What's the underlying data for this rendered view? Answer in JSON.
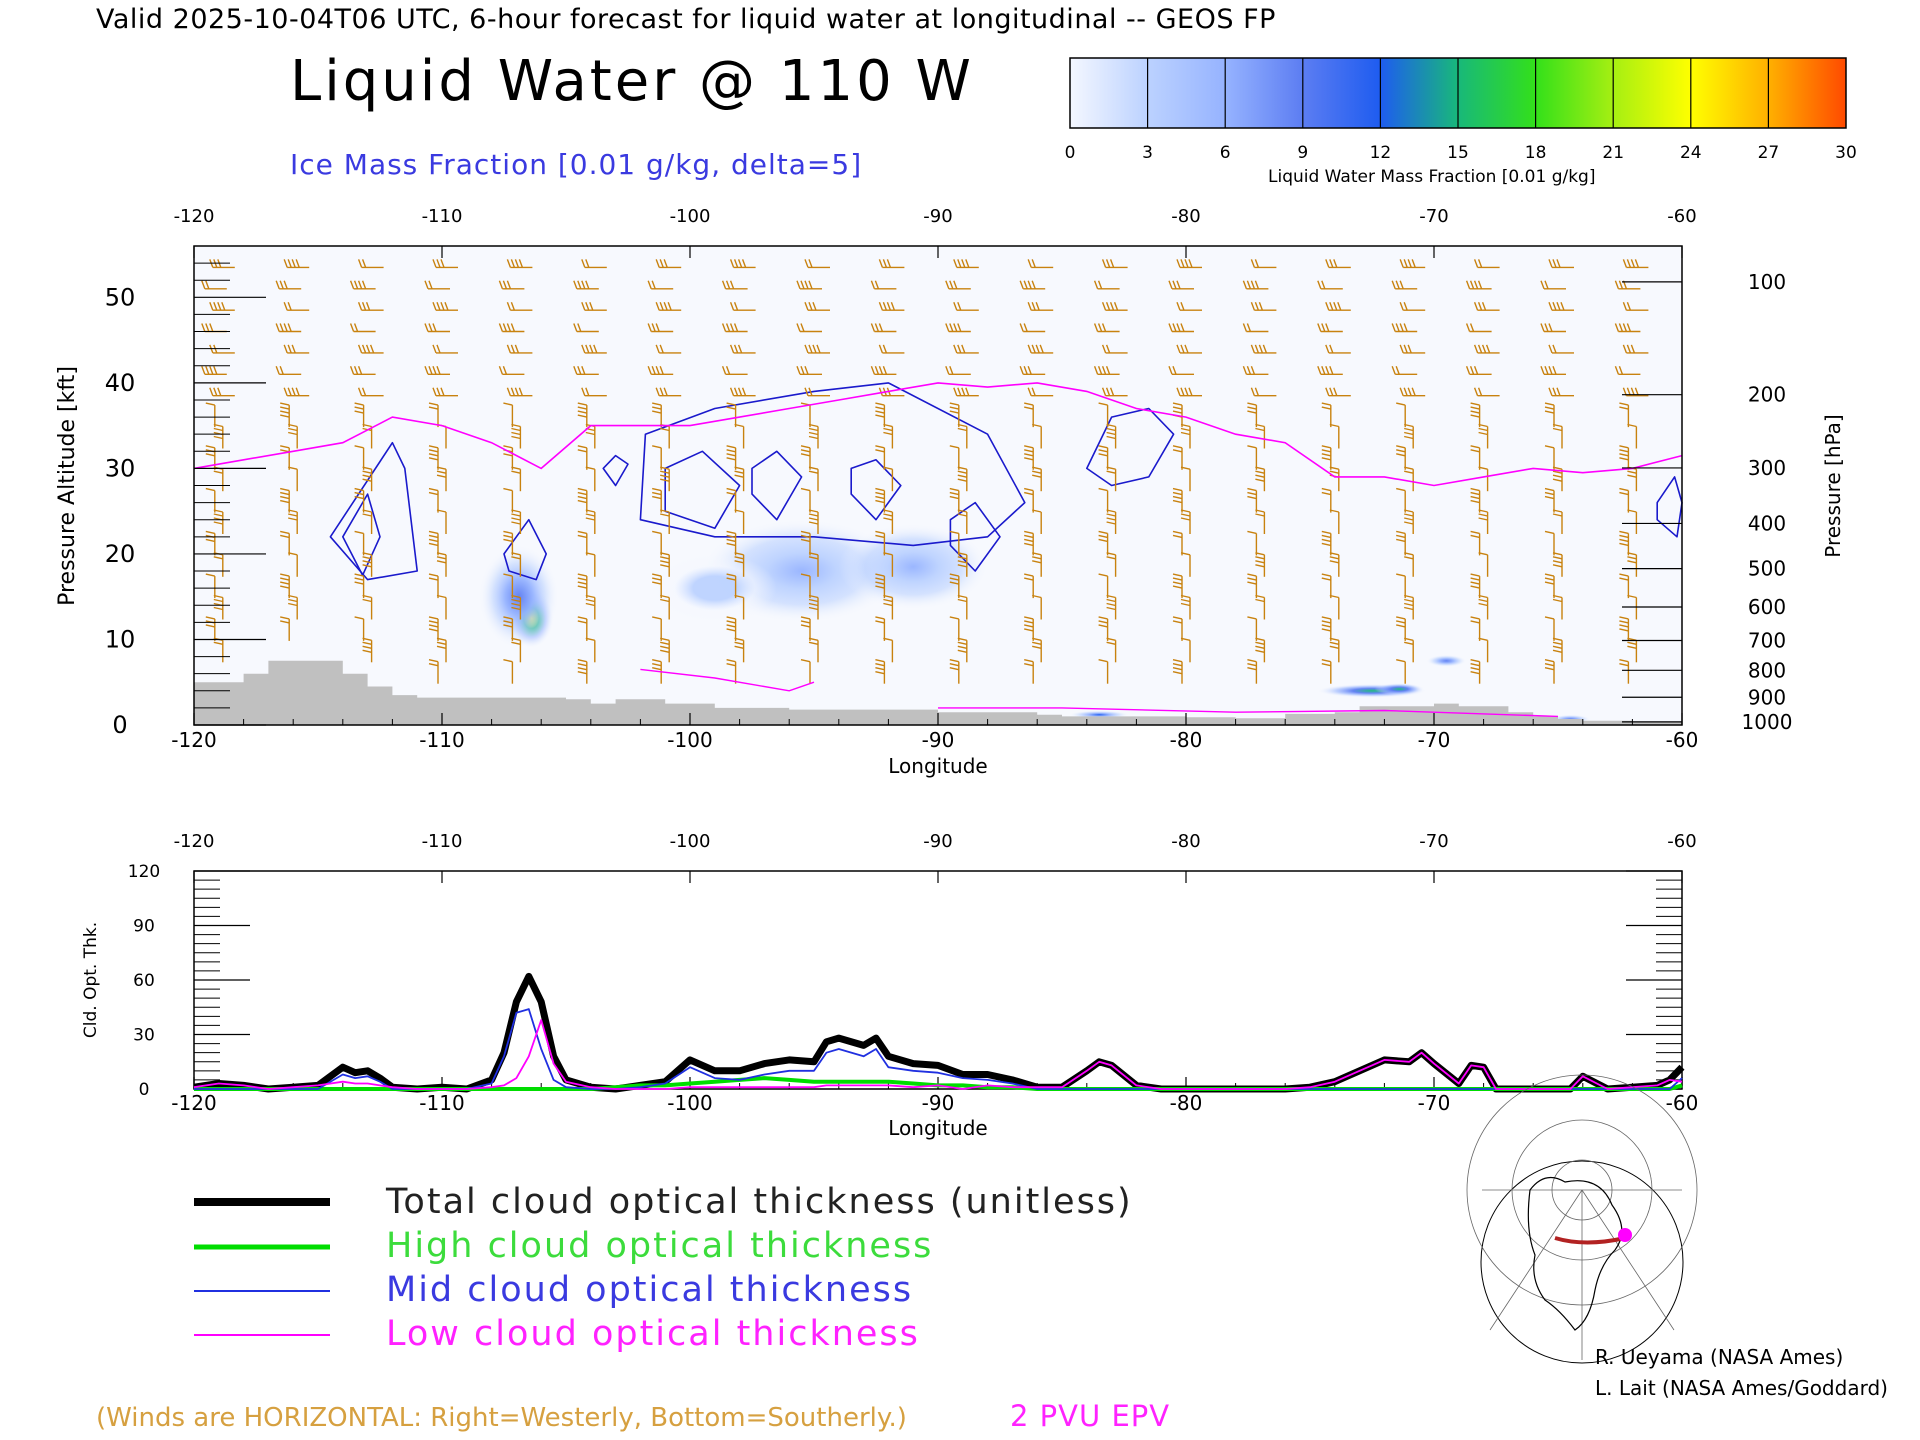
{
  "header": {
    "valid_line": "Valid 2025-10-04T06 UTC, 6-hour forecast for liquid water at longitudinal -- GEOS FP",
    "title": "Liquid Water @ 110 W",
    "subtitle": "Ice Mass Fraction [0.01 g/kg, delta=5]"
  },
  "colorbar": {
    "ticks": [
      "0",
      "3",
      "6",
      "9",
      "12",
      "15",
      "18",
      "21",
      "24",
      "27",
      "30"
    ],
    "label": "Liquid Water Mass Fraction [0.01 g/kg]",
    "colors": [
      "#f4f7ff",
      "#bcd2ff",
      "#96b3ff",
      "#5c7df2",
      "#1e5cf0",
      "#18b87a",
      "#33e01a",
      "#a6ef12",
      "#ffff00",
      "#ffb000",
      "#ff4a00"
    ]
  },
  "colors": {
    "ice_contour": "#1a1acc",
    "epv": "#ff00ff",
    "wind_barb": "#c8820f",
    "terrain": "#c0c0c0",
    "total": "#000000",
    "high": "#00dd00",
    "mid": "#2030e0",
    "low": "#ff00ff"
  },
  "chart_data": [
    {
      "type": "heatmap",
      "xlabel": "Longitude",
      "ylabel_left": "Pressure Altitude [kft]",
      "ylabel_right": "Pressure [hPa]",
      "x_ticks": [
        "-120",
        "-110",
        "-100",
        "-90",
        "-80",
        "-70",
        "-60"
      ],
      "y_ticks": [
        "0",
        "10",
        "20",
        "30",
        "40",
        "50"
      ],
      "pressure_ticks": [
        "100",
        "200",
        "300",
        "400",
        "500",
        "600",
        "700",
        "800",
        "900",
        "1000"
      ],
      "xlim": [
        -120,
        -60
      ],
      "ylim": [
        0,
        56
      ],
      "liquid_water_blobs": [
        {
          "lon": -106.4,
          "alt": 12.5,
          "peak": 24,
          "rx": 0.9,
          "ry": 3.5
        },
        {
          "lon": -106.9,
          "alt": 15,
          "peak": 8,
          "rx": 1.6,
          "ry": 6
        },
        {
          "lon": -95.5,
          "alt": 18,
          "peak": 5,
          "rx": 4,
          "ry": 6
        },
        {
          "lon": -91,
          "alt": 18.5,
          "peak": 5,
          "rx": 3,
          "ry": 5
        },
        {
          "lon": -99,
          "alt": 16,
          "peak": 3,
          "rx": 2.5,
          "ry": 4
        },
        {
          "lon": -72.5,
          "alt": 4,
          "peak": 15,
          "rx": 2.2,
          "ry": 0.8
        },
        {
          "lon": -71.4,
          "alt": 4.2,
          "peak": 16,
          "rx": 1,
          "ry": 0.7
        },
        {
          "lon": -69.5,
          "alt": 7.5,
          "peak": 10,
          "rx": 0.8,
          "ry": 0.7
        },
        {
          "lon": -83.5,
          "alt": 1.2,
          "peak": 11,
          "rx": 1.2,
          "ry": 0.5
        },
        {
          "lon": -64.5,
          "alt": 0.7,
          "peak": 8,
          "rx": 0.8,
          "ry": 0.5
        }
      ],
      "epv_2pvu": {
        "lon": [
          -120,
          -118,
          -116,
          -114,
          -112,
          -110,
          -108,
          -106,
          -104,
          -102,
          -100,
          -98,
          -96,
          -94,
          -92,
          -90,
          -88,
          -86,
          -84,
          -82,
          -80,
          -78,
          -76,
          -74,
          -72,
          -70,
          -68,
          -66,
          -64,
          -62,
          -60
        ],
        "alt": [
          30,
          31,
          32,
          33,
          36,
          35,
          33,
          30,
          35,
          35,
          35,
          36,
          37,
          38,
          39,
          40,
          39.5,
          40,
          39,
          37,
          36,
          34,
          33,
          29,
          29,
          28,
          29,
          30,
          29.5,
          30,
          31.5
        ]
      },
      "terrain": {
        "lon": [
          -120,
          -119,
          -118,
          -117,
          -116,
          -115,
          -114,
          -113,
          -112,
          -111,
          -110,
          -109,
          -108,
          -107,
          -106,
          -105,
          -104,
          -103,
          -102,
          -101,
          -100,
          -99,
          -98,
          -97,
          -96,
          -95,
          -94,
          -93,
          -92,
          -91,
          -90,
          -89,
          -88,
          -87,
          -86,
          -85,
          -84,
          -83,
          -82,
          -81,
          -80,
          -79,
          -78,
          -77,
          -76,
          -75,
          -74,
          -73,
          -72,
          -71,
          -70,
          -69,
          -68,
          -67,
          -66,
          -65,
          -64,
          -63,
          -62,
          -61,
          -60
        ],
        "alt": [
          5,
          5,
          6,
          7.5,
          7.5,
          7.5,
          6,
          4.5,
          3.5,
          3.2,
          3.2,
          3.2,
          3.2,
          3.2,
          3.2,
          3,
          2.5,
          3,
          3,
          2.5,
          2.5,
          2,
          2,
          2,
          1.8,
          1.8,
          1.8,
          1.8,
          1.8,
          1.8,
          1.5,
          1.5,
          1.5,
          1.5,
          1.2,
          1,
          1,
          1,
          1,
          1,
          0.9,
          0.9,
          0.8,
          0.8,
          1.3,
          1.3,
          1.5,
          2.2,
          2.2,
          2.2,
          2.5,
          2.2,
          2.2,
          1.5,
          1,
          0.7,
          0.5,
          0.5,
          0.3,
          0.3,
          0.3
        ]
      }
    },
    {
      "type": "line",
      "xlabel": "Longitude",
      "ylabel": "Cld. Opt. Thk.",
      "x_ticks": [
        "-120",
        "-110",
        "-100",
        "-90",
        "-80",
        "-70",
        "-60"
      ],
      "y_ticks": [
        "0",
        "30",
        "60",
        "90",
        "120"
      ],
      "xlim": [
        -120,
        -60
      ],
      "ylim": [
        0,
        120
      ],
      "x": [
        -120,
        -119,
        -118,
        -117,
        -116,
        -115,
        -114,
        -113.5,
        -113,
        -112.5,
        -112,
        -111,
        -110,
        -109,
        -108,
        -107.5,
        -107,
        -106.5,
        -106,
        -105.5,
        -105,
        -104,
        -103,
        -102,
        -101,
        -100,
        -99,
        -98,
        -97,
        -96,
        -95,
        -94.5,
        -94,
        -93,
        -92.5,
        -92,
        -91,
        -90,
        -89,
        -88,
        -87,
        -86,
        -85,
        -84,
        -83.5,
        -83,
        -82,
        -81,
        -80,
        -79,
        -78,
        -77,
        -76,
        -75,
        -74,
        -73,
        -72,
        -71,
        -70.5,
        -70,
        -69,
        -68.5,
        -68,
        -67.5,
        -67,
        -66,
        -65,
        -64.5,
        -64,
        -63,
        -62,
        -61,
        -60.5,
        -60
      ],
      "series": [
        {
          "name": "Total cloud optical thickness (unitless)",
          "values": [
            1,
            3,
            2,
            0,
            1,
            2,
            12,
            9,
            10,
            6,
            1,
            0,
            1,
            0,
            5,
            20,
            48,
            62,
            48,
            18,
            5,
            1,
            0,
            2,
            4,
            16,
            10,
            10,
            14,
            16,
            15,
            26,
            28,
            24,
            28,
            18,
            14,
            13,
            8,
            8,
            5,
            1,
            1,
            10,
            15,
            13,
            2,
            0,
            0,
            0,
            0,
            0,
            0,
            1,
            4,
            10,
            16,
            15,
            20,
            14,
            3,
            13,
            12,
            0,
            0,
            0,
            0,
            0,
            7,
            0,
            1,
            2,
            5,
            12
          ]
        },
        {
          "name": "High cloud optical thickness",
          "values": [
            0,
            0,
            0,
            0,
            0,
            0,
            0,
            0,
            0,
            0,
            0,
            0,
            0,
            0,
            0,
            0,
            0,
            0,
            0,
            0,
            0,
            0,
            1,
            2,
            2,
            3,
            4,
            5,
            6,
            5,
            4,
            4,
            4,
            4,
            4,
            4,
            3,
            2,
            2,
            1,
            1,
            0,
            0,
            0,
            0,
            0,
            0,
            0,
            0,
            0,
            0,
            0,
            0,
            0,
            0,
            0,
            0,
            0,
            0,
            0,
            0,
            0,
            0,
            0,
            0,
            0,
            0,
            0,
            0,
            0,
            0,
            0,
            0,
            2
          ]
        },
        {
          "name": "Mid cloud optical thickness",
          "values": [
            0,
            0,
            0,
            0,
            0,
            0,
            8,
            6,
            7,
            4,
            0,
            0,
            0,
            0,
            3,
            18,
            42,
            44,
            22,
            5,
            1,
            0,
            0,
            1,
            3,
            12,
            6,
            5,
            8,
            10,
            10,
            20,
            22,
            18,
            22,
            12,
            10,
            9,
            6,
            5,
            3,
            0,
            0,
            0,
            0,
            0,
            0,
            0,
            0,
            0,
            0,
            0,
            0,
            0,
            0,
            0,
            0,
            0,
            0,
            0,
            0,
            0,
            0,
            0,
            0,
            0,
            0,
            0,
            0,
            0,
            0,
            0,
            0,
            6
          ]
        },
        {
          "name": "Low cloud optical thickness",
          "values": [
            1,
            3,
            2,
            0,
            1,
            2,
            4,
            3,
            3,
            2,
            1,
            0,
            0,
            0,
            1,
            2,
            6,
            18,
            38,
            14,
            4,
            1,
            0,
            0,
            0,
            1,
            1,
            1,
            1,
            1,
            1,
            2,
            2,
            2,
            2,
            2,
            1,
            2,
            0,
            2,
            1,
            1,
            1,
            10,
            15,
            13,
            2,
            0,
            0,
            0,
            0,
            0,
            0,
            1,
            4,
            10,
            16,
            15,
            20,
            14,
            3,
            13,
            12,
            0,
            0,
            0,
            0,
            0,
            7,
            0,
            1,
            2,
            5,
            4
          ]
        }
      ]
    }
  ],
  "legend": {
    "total": "Total cloud optical thickness (unitless)",
    "high": "High cloud optical thickness",
    "mid": "Mid cloud optical thickness",
    "low": "Low cloud optical thickness"
  },
  "footer": {
    "winds_note": "(Winds are HORIZONTAL: Right=Westerly, Bottom=Southerly.)",
    "epv_label": "2 PVU EPV",
    "credit1": "R. Ueyama (NASA Ames)",
    "credit2": "L. Lait (NASA Ames/Goddard)"
  }
}
